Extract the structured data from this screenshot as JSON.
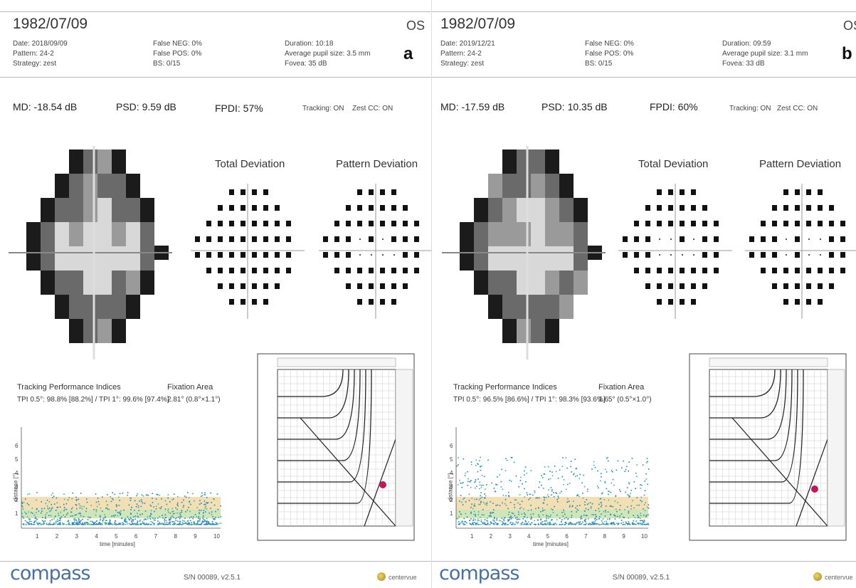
{
  "panels": {
    "a": {
      "dob": "1982/07/09",
      "eye": "OS",
      "date": "Date: 2018/09/09",
      "pattern": "Pattern: 24-2",
      "strategy": "Strategy: zest",
      "false_neg": "False NEG: 0%",
      "false_pos": "False POS: 0%",
      "bs": "BS: 0/15",
      "duration": "Duration: 10:18",
      "pupil": "Average pupil size: 3.5 mm",
      "fovea": "Fovea: 35 dB",
      "letter": "a",
      "md": "MD: -18.54 dB",
      "psd": "PSD: 9.59 dB",
      "fpdi": "FPDI: 57%",
      "tracking": "Tracking: ON",
      "zest": "Zest CC: ON",
      "total_deviation": "Total Deviation",
      "pattern_deviation": "Pattern Deviation",
      "tpi_title": "Tracking Performance Indices",
      "tpi_values": "TPI 0.5°: 98.8% [88.2%] / TPI 1°: 99.6% [97.4%]",
      "fix_title": "Fixation Area",
      "fix_value": "2.81° (0.8°×1.1°)",
      "plot_ylabel": "distance [°]",
      "plot_xlabel": "time [minutes]",
      "x_ticks": [
        "1",
        "2",
        "3",
        "4",
        "5",
        "6",
        "7",
        "8",
        "9",
        "10"
      ],
      "y_ticks": [
        "1",
        "2",
        "3",
        "4",
        "5",
        "6"
      ],
      "company": "compass",
      "serial": "S/N 00089, v2.5.1",
      "brand": "centervue"
    },
    "b": {
      "dob": "1982/07/09",
      "eye": "OS",
      "date": "Date: 2019/12/21",
      "pattern": "Pattern: 24-2",
      "strategy": "Strategy: zest",
      "false_neg": "False NEG: 0%",
      "false_pos": "False POS: 0%",
      "bs": "BS: 0/15",
      "duration": "Duration: 09:59",
      "pupil": "Average pupil size: 3.1 mm",
      "fovea": "Fovea: 33 dB",
      "letter": "b",
      "md": "MD: -17.59 dB",
      "psd": "PSD: 10.35 dB",
      "fpdi": "FPDI: 60%",
      "tracking": "Tracking: ON",
      "zest": "Zest CC: ON",
      "total_deviation": "Total Deviation",
      "pattern_deviation": "Pattern Deviation",
      "tpi_title": "Tracking Performance Indices",
      "tpi_values": "TPI 0.5°: 96.5% [86.6%] / TPI 1°: 98.3% [93.6%]",
      "fix_title": "Fixation Area",
      "fix_value": "1.65° (0.5°×1.0°)",
      "plot_ylabel": "distance [°]",
      "plot_xlabel": "time [minutes]",
      "x_ticks": [
        "1",
        "2",
        "3",
        "4",
        "5",
        "6",
        "7",
        "8",
        "9",
        "10"
      ],
      "y_ticks": [
        "1",
        "2",
        "3",
        "4",
        "5",
        "6"
      ],
      "company": "compass",
      "serial": "S/N 00089, v2.5.1",
      "brand": "centervue"
    }
  }
}
